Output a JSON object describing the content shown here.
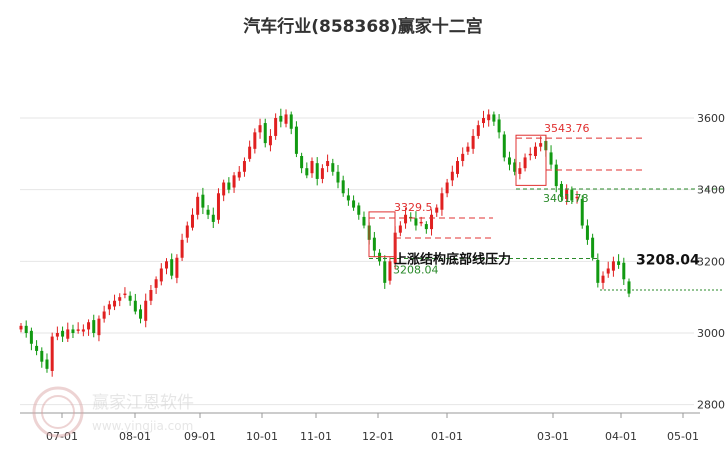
{
  "chart_data": {
    "type": "candlestick",
    "title": "汽车行业(858368)赢家十二宫",
    "y_ticks": [
      2800,
      3000,
      3200,
      3400,
      3600
    ],
    "ylim": [
      2790,
      3700
    ],
    "x_ticks": [
      "07-01",
      "08-01",
      "09-01",
      "10-01",
      "11-01",
      "12-01",
      "01-01",
      "03-01",
      "04-01",
      "05-01"
    ],
    "grid": "horizontal",
    "levels": [
      {
        "label": "3543.76",
        "value": 3543.76,
        "color": "#e03030"
      },
      {
        "label": "3329.5",
        "value": 3329.5,
        "color": "#e03030"
      },
      {
        "label": "3401.78",
        "value": 3401.78,
        "color": "#2a8a2a"
      },
      {
        "label": "3208.04",
        "value": 3208.04,
        "color": "#2a8a2a"
      }
    ],
    "annotation": {
      "text": "上涨结构底部线压力",
      "value": "3208.04"
    },
    "closes": [
      3020,
      3000,
      2970,
      2950,
      2920,
      2900,
      2990,
      3000,
      2990,
      3010,
      3000,
      3010,
      3010,
      3030,
      3000,
      3040,
      3060,
      3080,
      3090,
      3100,
      3110,
      3090,
      3060,
      3040,
      3090,
      3120,
      3150,
      3180,
      3200,
      3160,
      3210,
      3260,
      3300,
      3330,
      3380,
      3350,
      3330,
      3310,
      3390,
      3420,
      3400,
      3440,
      3450,
      3480,
      3520,
      3560,
      3580,
      3530,
      3550,
      3600,
      3590,
      3610,
      3570,
      3500,
      3460,
      3440,
      3480,
      3430,
      3460,
      3480,
      3450,
      3420,
      3390,
      3370,
      3350,
      3330,
      3300,
      3260,
      3230,
      3200,
      3140,
      3200,
      3280,
      3300,
      3330,
      3320,
      3300,
      3310,
      3290,
      3330,
      3350,
      3390,
      3420,
      3450,
      3480,
      3500,
      3520,
      3550,
      3580,
      3600,
      3610,
      3590,
      3560,
      3490,
      3470,
      3450,
      3460,
      3490,
      3500,
      3520,
      3530,
      3510,
      3470,
      3410,
      3380,
      3400,
      3370,
      3380,
      3300,
      3260,
      3210,
      3140,
      3160,
      3180,
      3200,
      3190,
      3150,
      3110
    ]
  }
}
